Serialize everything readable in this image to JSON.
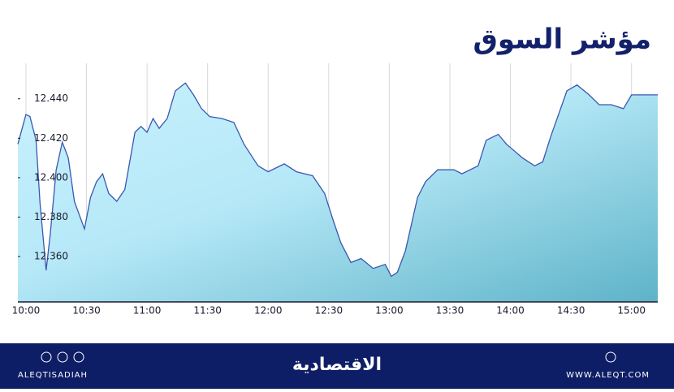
{
  "chart_data": {
    "type": "area",
    "title": "مؤشر السوق",
    "color": "#3a57b0",
    "x": [
      "09:56",
      "10:00",
      "10:02",
      "10:05",
      "10:07",
      "10:10",
      "10:12",
      "10:15",
      "10:18",
      "10:21",
      "10:24",
      "10:29",
      "10:32",
      "10:35",
      "10:38",
      "10:41",
      "10:45",
      "10:49",
      "10:54",
      "10:57",
      "11:00",
      "11:03",
      "11:06",
      "11:10",
      "11:14",
      "11:19",
      "11:23",
      "11:27",
      "11:31",
      "11:37",
      "11:43",
      "11:48",
      "11:55",
      "12:00",
      "12:08",
      "12:14",
      "12:22",
      "12:28",
      "12:32",
      "12:36",
      "12:41",
      "12:46",
      "12:52",
      "12:58",
      "13:01",
      "13:04",
      "13:08",
      "13:14",
      "13:18",
      "13:24",
      "13:32",
      "13:36",
      "13:44",
      "13:48",
      "13:54",
      "13:58",
      "14:06",
      "14:12",
      "14:16",
      "14:20",
      "14:28",
      "14:33",
      "14:39",
      "14:44",
      "14:50",
      "14:56",
      "15:00",
      "15:13"
    ],
    "values": [
      12417,
      12432,
      12431,
      12419,
      12387,
      12353,
      12371,
      12404,
      12418,
      12410,
      12388,
      12374,
      12390,
      12398,
      12402,
      12392,
      12388,
      12394,
      12423,
      12426,
      12423,
      12430,
      12425,
      12430,
      12444,
      12448,
      12442,
      12435,
      12431,
      12430,
      12428,
      12417,
      12406,
      12403,
      12407,
      12403,
      12401,
      12392,
      12379,
      12367,
      12357,
      12359,
      12354,
      12356,
      12350,
      12352,
      12363,
      12390,
      12398,
      12404,
      12404,
      12402,
      12406,
      12419,
      12422,
      12417,
      12410,
      12406,
      12408,
      12421,
      12444,
      12447,
      12442,
      12437,
      12437,
      12435,
      12442,
      12442
    ],
    "xlim": [
      "09:56",
      "15:13"
    ],
    "xticks": [
      "10:00",
      "10:30",
      "11:00",
      "11:30",
      "12:00",
      "12:30",
      "13:00",
      "13:30",
      "14:00",
      "14:30",
      "15:00"
    ],
    "ylim": [
      12337,
      12458
    ],
    "yticks": [
      {
        "value": 12360,
        "label": "12.360"
      },
      {
        "value": 12380,
        "label": "12.380"
      },
      {
        "value": 12400,
        "label": "12.400"
      },
      {
        "value": 12420,
        "label": "12.420"
      },
      {
        "value": 12440,
        "label": "12.440"
      }
    ],
    "grid": true
  },
  "footer": {
    "handle": "ALEQTISADIAH",
    "brand": "الاقتصادية",
    "website": "WWW.ALEQT.COM"
  }
}
